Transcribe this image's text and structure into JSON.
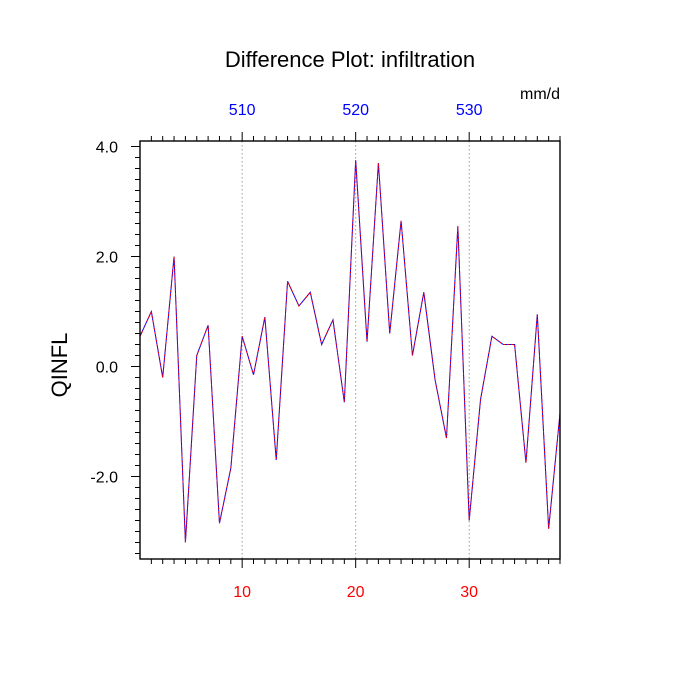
{
  "chart_data": {
    "type": "line",
    "title": "Difference Plot: infiltration",
    "units": "mm/d",
    "ylabel": "QINFL",
    "xlabel": "",
    "xlim": [
      1,
      38
    ],
    "ylim": [
      -3.5,
      4.1
    ],
    "grid": "vertical dotted lines at labeled x ticks",
    "bottom_axis": {
      "color": "#ff0000",
      "ticks": [
        10,
        20,
        30
      ],
      "tick_labels": [
        "10",
        "20",
        "30"
      ]
    },
    "top_axis": {
      "color": "#0000ff",
      "ticks": [
        10,
        20,
        30
      ],
      "tick_labels": [
        "510",
        "520",
        "530"
      ]
    },
    "left_axis": {
      "ticks": [
        4.0,
        2.0,
        0.0,
        -2.0
      ],
      "tick_labels": [
        "4.0",
        "2.0",
        "0.0",
        "-2.0"
      ]
    },
    "series": [
      {
        "colors": [
          "#0000ff",
          "#ff0000"
        ],
        "x": [
          1,
          2,
          3,
          4,
          5,
          6,
          7,
          8,
          9,
          10,
          11,
          12,
          13,
          14,
          15,
          16,
          17,
          18,
          19,
          20,
          21,
          22,
          23,
          24,
          25,
          26,
          27,
          28,
          29,
          30,
          31,
          32,
          33,
          34,
          35,
          36,
          37,
          38
        ],
        "values": [
          0.55,
          1.0,
          -0.2,
          2.0,
          -3.2,
          0.2,
          0.75,
          -2.85,
          -1.85,
          0.55,
          -0.15,
          0.9,
          -1.7,
          1.55,
          1.1,
          1.35,
          0.4,
          0.85,
          -0.65,
          3.75,
          0.45,
          3.7,
          0.6,
          2.65,
          0.2,
          1.35,
          -0.25,
          -1.3,
          2.55,
          -2.8,
          -0.6,
          0.55,
          0.4,
          0.4,
          -1.75,
          0.95,
          -2.95,
          -0.85
        ]
      }
    ]
  }
}
